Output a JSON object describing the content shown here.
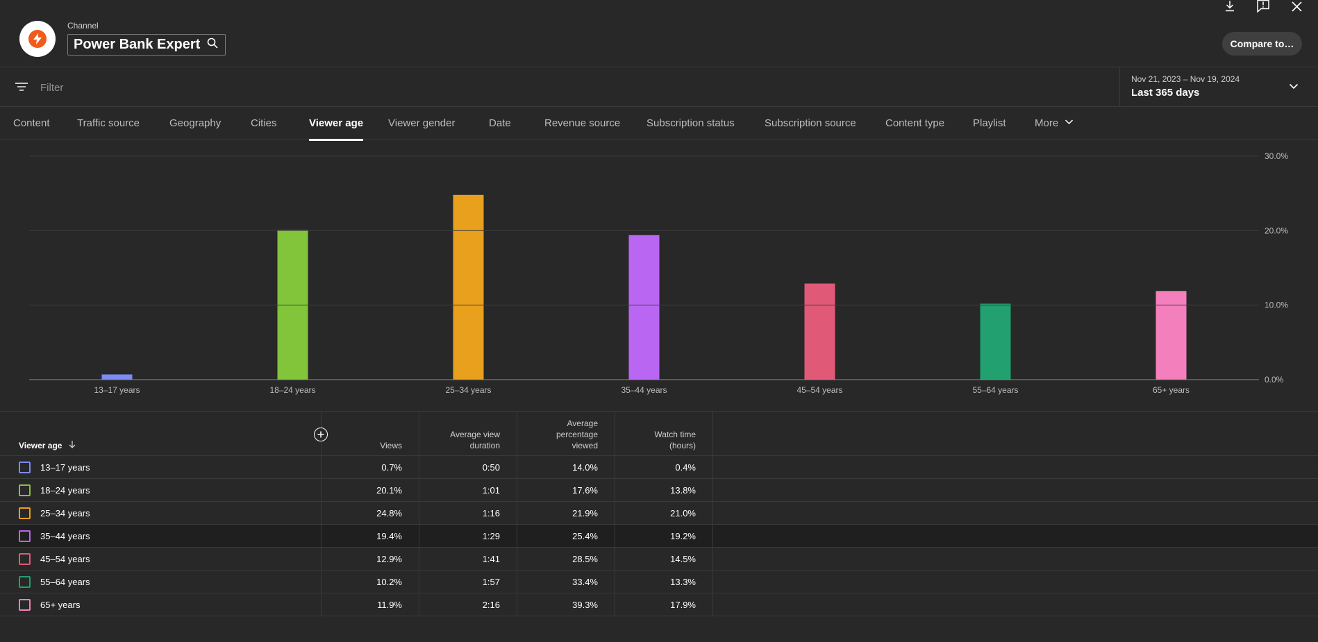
{
  "header": {
    "channel_caption": "Channel",
    "channel_name": "Power Bank Expert",
    "compare_label": "Compare to…",
    "icons": [
      "download-icon",
      "feedback-icon",
      "close-icon",
      "search-icon"
    ]
  },
  "filter": {
    "placeholder": "Filter",
    "date_sub": "Nov 21, 2023 – Nov 19, 2024",
    "date_main": "Last 365 days"
  },
  "tabs": [
    {
      "label": "Content"
    },
    {
      "label": "Traffic source"
    },
    {
      "label": "Geography"
    },
    {
      "label": "Cities"
    },
    {
      "label": "Viewer age",
      "active": true
    },
    {
      "label": "Viewer gender"
    },
    {
      "label": "Date"
    },
    {
      "label": "Revenue source"
    },
    {
      "label": "Subscription status"
    },
    {
      "label": "Subscription source"
    },
    {
      "label": "Content type"
    },
    {
      "label": "Playlist"
    },
    {
      "label": "More"
    }
  ],
  "chart_data": {
    "type": "bar",
    "categories": [
      "13–17 years",
      "18–24 years",
      "25–34 years",
      "35–44 years",
      "45–54 years",
      "55–64 years",
      "65+ years"
    ],
    "values": [
      0.7,
      20.1,
      24.8,
      19.4,
      12.9,
      10.2,
      11.9
    ],
    "colors": [
      "#7b8cf5",
      "#82c53a",
      "#e9a01c",
      "#b967f2",
      "#e05a78",
      "#22a070",
      "#f47fbd"
    ],
    "y_ticks": [
      "0.0%",
      "10.0%",
      "20.0%",
      "30.0%"
    ],
    "ylim": [
      0,
      30
    ],
    "y_axis_position": "right",
    "grid": true
  },
  "table": {
    "columns": [
      {
        "label": "Viewer age"
      },
      {
        "label": "Views"
      },
      {
        "label": "Average view duration"
      },
      {
        "label": "Average percentage viewed"
      },
      {
        "label": "Watch time (hours)"
      }
    ],
    "rows": [
      {
        "age": "13–17 years",
        "views": "0.7%",
        "avd": "0:50",
        "apv": "14.0%",
        "watch": "0.4%",
        "color": "#7b8cf5"
      },
      {
        "age": "18–24 years",
        "views": "20.1%",
        "avd": "1:01",
        "apv": "17.6%",
        "watch": "13.8%",
        "color": "#82c53a"
      },
      {
        "age": "25–34 years",
        "views": "24.8%",
        "avd": "1:16",
        "apv": "21.9%",
        "watch": "21.0%",
        "color": "#e9a01c"
      },
      {
        "age": "35–44 years",
        "views": "19.4%",
        "avd": "1:29",
        "apv": "25.4%",
        "watch": "19.2%",
        "color": "#b967f2"
      },
      {
        "age": "45–54 years",
        "views": "12.9%",
        "avd": "1:41",
        "apv": "28.5%",
        "watch": "14.5%",
        "color": "#e05a78"
      },
      {
        "age": "55–64 years",
        "views": "10.2%",
        "avd": "1:57",
        "apv": "33.4%",
        "watch": "13.3%",
        "color": "#22a070"
      },
      {
        "age": "65+ years",
        "views": "11.9%",
        "avd": "2:16",
        "apv": "39.3%",
        "watch": "17.9%",
        "color": "#f47fbd"
      }
    ]
  }
}
